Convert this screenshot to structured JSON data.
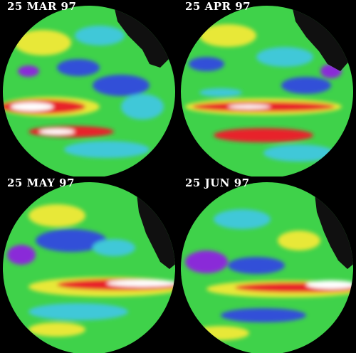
{
  "panels": [
    {
      "date_label": "25 MAR 97"
    },
    {
      "date_label": "25 APR 97"
    },
    {
      "date_label": "25 MAY 97"
    },
    {
      "date_label": "25 JUN 97"
    }
  ],
  "colors": {
    "background": "#000000",
    "green": "#3fd24a",
    "yellow": "#e8e838",
    "cyan": "#3fc8d8",
    "blue": "#3050d8",
    "purple": "#8a2ad8",
    "red": "#e8202a",
    "white": "#ffffff",
    "land": "#101010"
  }
}
